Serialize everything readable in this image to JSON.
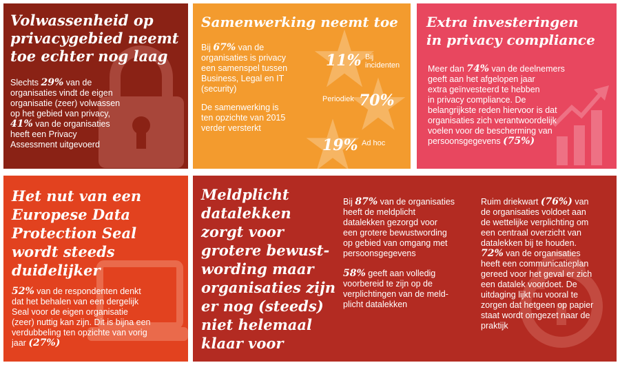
{
  "colors": {
    "tile1": "#8a2215",
    "tile2": "#f39b2e",
    "tile3": "#e8475f",
    "tile4": "#e2421f",
    "tile5": "#b32b22",
    "white": "#ffffff"
  },
  "tile1": {
    "heading": [
      "Volwassenheid op",
      "privacygebied neemt",
      "toe echter nog laag"
    ],
    "icon": "padlock-icon",
    "l1a": "Slechts ",
    "l1b": "29%",
    "l1c": " van de",
    "l2": "organisaties vindt de eigen",
    "l3": "organisatie (zeer) volwassen",
    "l4": "op het gebied van privacy,",
    "l5a": "41%",
    "l5b": " van de organisaties",
    "l6": "heeft een Privacy",
    "l7": "Assessment uitgevoerd"
  },
  "tile2": {
    "heading": "Samenwerking neemt toe",
    "icon": "star-icon",
    "p1a": "Bij ",
    "p1b": "67%",
    "p1c": " van de",
    "p1l2": "organisaties is privacy",
    "p1l3": "een samenspel tussen",
    "p1l4": "Business, Legal en IT",
    "p1l5": "(security)",
    "p2l1": "De samenwerking is",
    "p2l2": "ten opzichte van 2015",
    "p2l3": "verder versterkt",
    "star1_value": "11%",
    "star1_label_l1": "Bij",
    "star1_label_l2": "incidenten",
    "star2_value": "70%",
    "star2_label": "Periodiek",
    "star3_value": "19%",
    "star3_label": "Ad hoc"
  },
  "tile3": {
    "heading": [
      "Extra investeringen",
      "in privacy compliance"
    ],
    "icon": "rising-bar-chart-icon",
    "l1a": "Meer dan ",
    "l1b": "74%",
    "l1c": " van de deelnemers",
    "l2": "geeft aan het afgelopen jaar",
    "l3": "extra geïnvesteerd te hebben",
    "l4": "in privacy compliance. De",
    "l5": "belangrijkste reden hiervoor is dat",
    "l6": "organisaties zich verantwoordelijk",
    "l7": "voelen voor de bescherming van",
    "l8a": "persoonsgegevens ",
    "l8b": "(75%)"
  },
  "tile4": {
    "heading": [
      "Het nut van een",
      "Europese Data",
      "Protection Seal",
      "wordt steeds",
      "duidelijker"
    ],
    "icon": "laptop-icon",
    "l1a": "52%",
    "l1b": " van de respondenten denkt",
    "l2": "dat het behalen van een dergelijk",
    "l3": "Seal voor de eigen organisatie",
    "l4": "(zeer) nuttig kan zijn. Dit is bijna een",
    "l5": "verdubbeling ten opzichte van vorig",
    "l6a": "jaar ",
    "l6b": "(27%)"
  },
  "tile5": {
    "heading": [
      "Meldplicht",
      "datalekken",
      "zorgt voor",
      "grotere bewust-",
      "wording maar",
      "organisaties zijn",
      "er nog (steeds)",
      "niet helemaal",
      "klaar voor"
    ],
    "icon": "lock-outline-icon",
    "c1p1a": "Bij ",
    "c1p1b": "87%",
    "c1p1c": " van de organisaties",
    "c1p1l2": "heeft de meldplicht",
    "c1p1l3": "datalekken gezorgd voor",
    "c1p1l4": "een grotere bewustwording",
    "c1p1l5": "op gebied van omgang met",
    "c1p1l6": "persoonsgegevens",
    "c1p2a": "58%",
    "c1p2b": " geeft aan volledig",
    "c1p2l2": "voorbereid te zijn op de",
    "c1p2l3": "verplichtingen van de meld-",
    "c1p2l4": "plicht datalekken",
    "c2p1a": "Ruim driekwart ",
    "c2p1b": "(76%)",
    "c2p1c": " van",
    "c2p1l2": "de organisaties voldoet aan",
    "c2p1l3": "de wettelijke verplichting om",
    "c2p1l4": "een centraal overzicht van",
    "c2p1l5": "datalekken bij te houden.",
    "c2p2a": "72%",
    "c2p2b": " van de organisaties",
    "c2p2l2": "heeft een communicatieplan",
    "c2p2l3": "gereed voor het geval er zich",
    "c2p2l4": "een datalek voordoet. De",
    "c2p2l5": "uitdaging lijkt nu vooral te",
    "c2p2l6": "zorgen dat hetgeen op papier",
    "c2p2l7": "staat wordt omgezet naar de",
    "c2p2l8": "praktijk"
  }
}
